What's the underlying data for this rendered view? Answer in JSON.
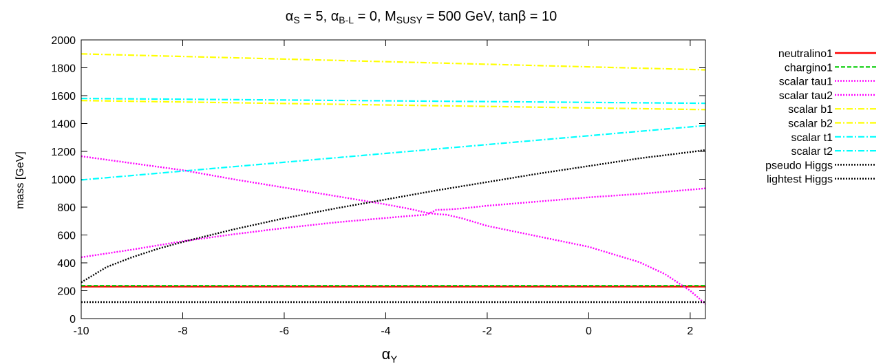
{
  "chart_data": {
    "type": "line",
    "title": {
      "alpha_s": {
        "sym": "α",
        "sub": "S",
        "rest": " = 5,  "
      },
      "alpha_bl": {
        "sym": "α",
        "sub": "B-L",
        "rest": " = 0,  "
      },
      "msusy": {
        "sym": "M",
        "sub": "SUSY",
        "rest": " = 500 GeV,  tanβ = 10"
      }
    },
    "xlabel": {
      "sym": "α",
      "sub": "Y"
    },
    "ylabel": "mass [GeV]",
    "xlim": [
      -10,
      2.3
    ],
    "ylim": [
      0,
      2000
    ],
    "xticks": [
      -10,
      -8,
      -6,
      -4,
      -2,
      0,
      2
    ],
    "yticks": [
      0,
      200,
      400,
      600,
      800,
      1000,
      1200,
      1400,
      1600,
      1800,
      2000
    ],
    "grid": false,
    "legend_position": "outside-right",
    "series": [
      {
        "name": "neutralino1",
        "color": "#ff0000",
        "dash": "solid",
        "width": 2.6,
        "x": [
          -10,
          2.3
        ],
        "y": [
          230,
          230
        ]
      },
      {
        "name": "chargino1",
        "color": "#00cc00",
        "dash": "dashed",
        "width": 2.2,
        "x": [
          -10,
          2.3
        ],
        "y": [
          236,
          236
        ]
      },
      {
        "name": "scalar tau1",
        "color": "#ff00ff",
        "dash": "dotted",
        "width": 2.4,
        "x": [
          -10,
          -9,
          -8,
          -7,
          -6,
          -5,
          -4,
          -3.5,
          -3.2,
          -3,
          -2.8,
          -2.5,
          -2,
          -1,
          0,
          1,
          1.5,
          2,
          2.3
        ],
        "y": [
          1165,
          1115,
          1065,
          1000,
          940,
          880,
          820,
          785,
          760,
          750,
          745,
          720,
          665,
          590,
          515,
          405,
          320,
          200,
          105
        ]
      },
      {
        "name": "scalar tau2",
        "color": "#ff00ff",
        "dash": "dotted",
        "width": 2.4,
        "x": [
          -10,
          -9,
          -8,
          -7,
          -6,
          -5,
          -4,
          -3.5,
          -3.2,
          -3,
          -2.8,
          -2.5,
          -2,
          -1,
          0,
          1,
          2,
          2.3
        ],
        "y": [
          440,
          495,
          555,
          605,
          650,
          690,
          722,
          738,
          745,
          780,
          782,
          790,
          810,
          840,
          870,
          895,
          925,
          935
        ]
      },
      {
        "name": "scalar b1",
        "color": "#ffff00",
        "dash": "dashdot",
        "width": 2.2,
        "x": [
          -10,
          2.3
        ],
        "y": [
          1565,
          1500
        ]
      },
      {
        "name": "scalar b2",
        "color": "#ffff00",
        "dash": "dashdot",
        "width": 2.2,
        "x": [
          -10,
          2.3
        ],
        "y": [
          1900,
          1785
        ]
      },
      {
        "name": "scalar t1",
        "color": "#00ffff",
        "dash": "dashdot",
        "width": 2.2,
        "x": [
          -10,
          2.3
        ],
        "y": [
          995,
          1385
        ]
      },
      {
        "name": "scalar t2",
        "color": "#00ffff",
        "dash": "dashdot",
        "width": 2.2,
        "x": [
          -10,
          2.3
        ],
        "y": [
          1580,
          1545
        ]
      },
      {
        "name": "pseudo Higgs",
        "color": "#000000",
        "dash": "dotted",
        "width": 2.4,
        "x": [
          -10,
          -9.5,
          -9,
          -8.5,
          -8,
          -7,
          -6,
          -5,
          -4,
          -3,
          -2,
          -1,
          0,
          1,
          2,
          2.3
        ],
        "y": [
          260,
          370,
          440,
          500,
          550,
          640,
          720,
          790,
          855,
          920,
          980,
          1040,
          1095,
          1150,
          1195,
          1210
        ]
      },
      {
        "name": "lightest Higgs",
        "color": "#000000",
        "dash": "dotted",
        "width": 2.4,
        "x": [
          -10,
          2.3
        ],
        "y": [
          118,
          118
        ]
      }
    ]
  }
}
